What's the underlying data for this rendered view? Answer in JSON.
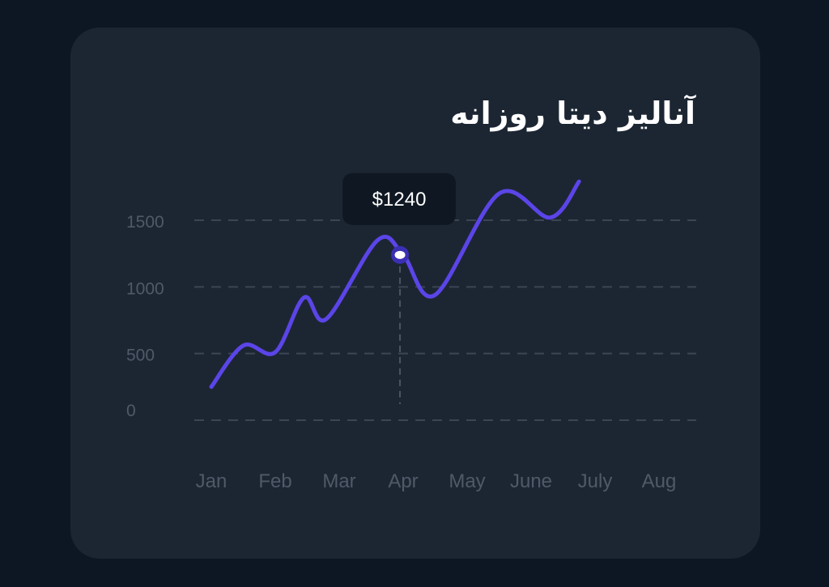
{
  "chart_data": {
    "type": "line",
    "title": "آنالیز دیتا روزانه",
    "categories": [
      "Jan",
      "Feb",
      "Mar",
      "Apr",
      "May",
      "June",
      "July",
      "Aug"
    ],
    "y_ticks": [
      "0",
      "500",
      "1000",
      "1500"
    ],
    "ylim": [
      0,
      1500
    ],
    "grid": true,
    "series": [
      {
        "color": "#5b45e8",
        "points": [
          {
            "x": 0.0,
            "y": 250
          },
          {
            "x": 0.5,
            "y": 560
          },
          {
            "x": 1.0,
            "y": 510
          },
          {
            "x": 1.45,
            "y": 920
          },
          {
            "x": 1.8,
            "y": 760
          },
          {
            "x": 2.6,
            "y": 1350
          },
          {
            "x": 3.0,
            "y": 1240
          },
          {
            "x": 3.5,
            "y": 940
          },
          {
            "x": 4.5,
            "y": 1700
          },
          {
            "x": 5.3,
            "y": 1520
          },
          {
            "x": 5.75,
            "y": 1790
          }
        ]
      }
    ],
    "highlight": {
      "x": 2.95,
      "y": 1240,
      "label": "$1240"
    }
  }
}
